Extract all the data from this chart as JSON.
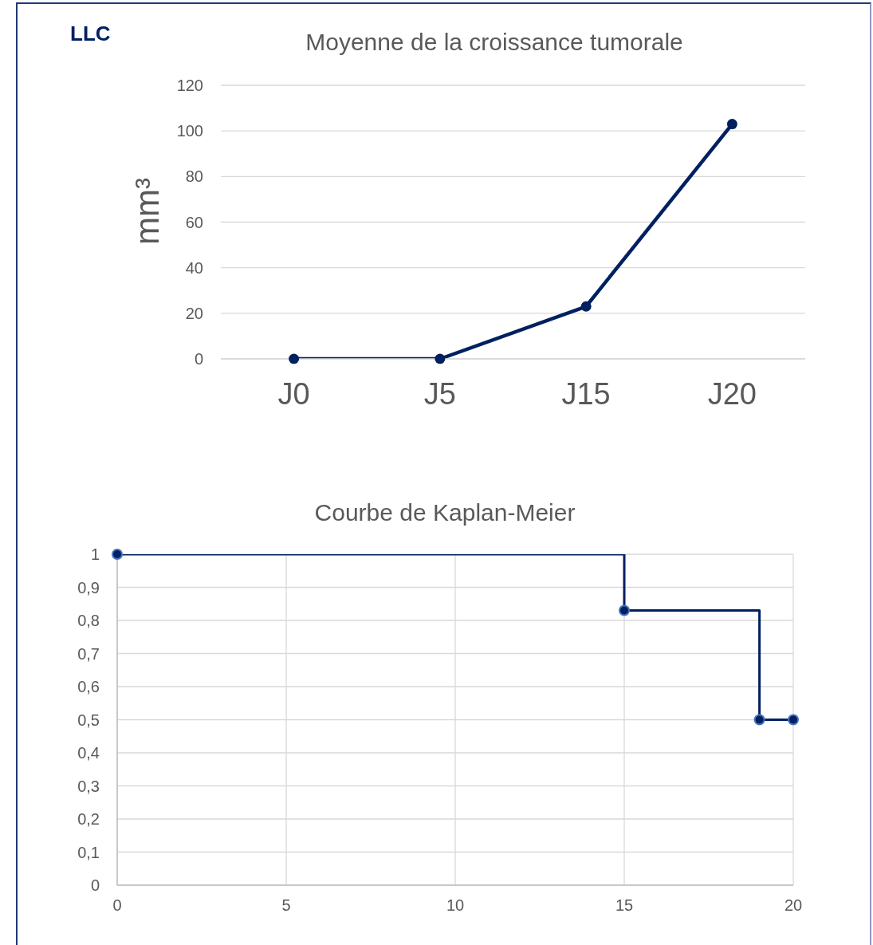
{
  "chart_data": [
    {
      "type": "line",
      "title": "Moyenne de la croissance tumorale",
      "ylabel": "mm³",
      "annotations": [
        "LLC"
      ],
      "categories": [
        "J0",
        "J5",
        "J15",
        "J20"
      ],
      "series": [
        {
          "color": "#002060",
          "values": [
            0,
            0,
            23,
            103
          ]
        }
      ],
      "ylim": [
        0,
        120
      ],
      "yticks": [
        0,
        20,
        40,
        60,
        80,
        100,
        120
      ],
      "grid": "y",
      "marker": "circle"
    },
    {
      "type": "step",
      "title": "Courbe de Kaplan-Meier",
      "x": [
        0,
        15,
        19,
        20
      ],
      "series": [
        {
          "color": "#002060",
          "values": [
            1,
            0.83,
            0.5,
            0.5
          ]
        }
      ],
      "xlim": [
        0,
        20
      ],
      "xticks": [
        0,
        5,
        10,
        15,
        20
      ],
      "ylim": [
        0,
        1
      ],
      "yticks": [
        0,
        {
          "value": 0.1,
          "label": "0,1"
        },
        {
          "value": 0.2,
          "label": "0,2"
        },
        {
          "value": 0.3,
          "label": "0,3"
        },
        {
          "value": 0.4,
          "label": "0,4"
        },
        {
          "value": 0.5,
          "label": "0,5"
        },
        {
          "value": 0.6,
          "label": "0,6"
        },
        {
          "value": 0.7,
          "label": "0,7"
        },
        {
          "value": 0.8,
          "label": "0,8"
        },
        {
          "value": 0.9,
          "label": "0,9"
        },
        1
      ],
      "grid": true,
      "marker": "circle"
    }
  ]
}
